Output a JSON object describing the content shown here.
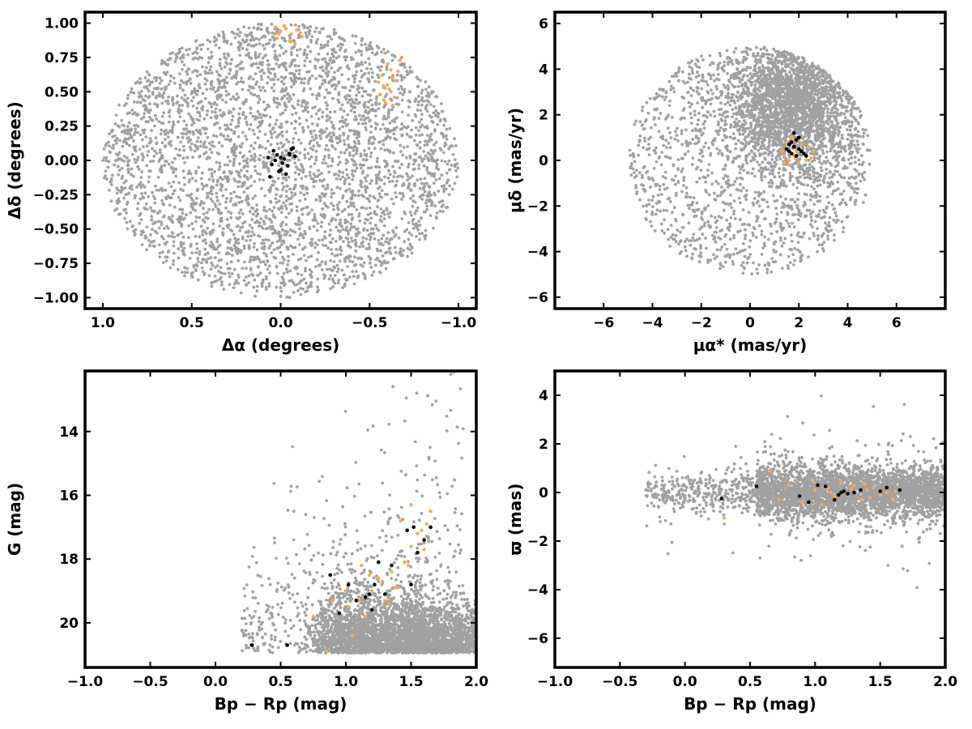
{
  "colors": {
    "field": "#a0a0a0",
    "member": "#000000",
    "candidate": "#f5a95a"
  },
  "chart_data": [
    {
      "id": "sky",
      "type": "scatter",
      "xlabel": "Δα (degrees)",
      "ylabel": "Δδ (degrees)",
      "xlim": [
        1.1,
        -1.1
      ],
      "ylim": [
        -1.08,
        1.08
      ],
      "x_reversed": true,
      "xticks": [
        1.0,
        0.5,
        0.0,
        -0.5,
        -1.0
      ],
      "xtick_labels": [
        "1.0",
        "0.5",
        "0.0",
        "−0.5",
        "−1.0"
      ],
      "yticks": [
        1.0,
        0.75,
        0.5,
        0.25,
        0.0,
        -0.25,
        -0.5,
        -0.75,
        -1.0
      ],
      "ytick_labels": [
        "1.00",
        "0.75",
        "0.50",
        "0.25",
        "0.00",
        "−0.25",
        "−0.50",
        "−0.75",
        "−1.00"
      ],
      "grid": false,
      "field": {
        "distribution": "disc",
        "center": [
          0,
          0
        ],
        "radius": 1.0,
        "n": 3600
      },
      "series": [
        {
          "role": "member",
          "x": [
            0.07,
            0.05,
            0.02,
            0.0,
            -0.02,
            -0.03,
            -0.05,
            -0.06,
            -0.08,
            -0.04,
            0.01,
            0.03,
            -0.07,
            0.06,
            0.04,
            -0.01,
            -0.05,
            0.0
          ],
          "y": [
            0.02,
            -0.03,
            0.04,
            -0.07,
            0.01,
            -0.1,
            0.05,
            0.08,
            0.03,
            -0.04,
            -0.08,
            0.0,
            0.09,
            -0.12,
            0.07,
            -0.02,
            0.04,
            0.02
          ]
        },
        {
          "role": "candidate",
          "x": [
            0.03,
            0.0,
            -0.03,
            -0.06,
            -0.09,
            -0.12,
            0.02,
            -0.05,
            -0.08,
            -0.11,
            -0.02,
            0.01,
            -0.55,
            -0.57,
            -0.6,
            -0.62,
            -0.64,
            -0.58,
            -0.61,
            -0.63,
            -0.66,
            -0.6,
            -0.56,
            -0.59,
            -0.65,
            -0.62,
            -0.67,
            -0.68,
            -0.63,
            -0.58
          ],
          "y": [
            0.97,
            0.94,
            0.96,
            0.92,
            0.95,
            0.9,
            0.89,
            0.87,
            0.85,
            0.93,
            0.98,
            0.92,
            0.57,
            0.62,
            0.55,
            0.5,
            0.46,
            0.44,
            0.52,
            0.6,
            0.65,
            0.7,
            0.48,
            0.42,
            0.58,
            0.66,
            0.73,
            0.75,
            0.4,
            0.53
          ]
        }
      ]
    },
    {
      "id": "proper-motion",
      "type": "scatter",
      "xlabel": "μα* (mas/yr)",
      "ylabel": "μδ (mas/yr)",
      "xlim": [
        -8,
        8
      ],
      "ylim": [
        -6.5,
        6.5
      ],
      "xticks": [
        -6,
        -4,
        -2,
        0,
        2,
        4,
        6
      ],
      "xtick_labels": [
        "−6",
        "−4",
        "−2",
        "0",
        "2",
        "4",
        "6"
      ],
      "yticks": [
        6,
        4,
        2,
        0,
        -2,
        -4,
        -6
      ],
      "ytick_labels": [
        "6",
        "4",
        "2",
        "0",
        "−2",
        "−4",
        "−6"
      ],
      "grid": false,
      "field": {
        "distribution": "disc-concentrated",
        "center": [
          0,
          0
        ],
        "radius": 5.0,
        "core": [
          1.8,
          2.5
        ],
        "n": 3600
      },
      "series": [
        {
          "role": "member",
          "x": [
            1.6,
            1.8,
            2.0,
            1.7,
            1.9,
            2.2,
            1.5,
            1.8,
            2.1,
            1.7,
            1.9,
            2.3,
            1.6,
            2.0
          ],
          "y": [
            0.4,
            0.6,
            0.5,
            0.3,
            0.9,
            0.3,
            0.5,
            1.2,
            0.4,
            0.8,
            0.2,
            0.2,
            0.7,
            1.0
          ]
        },
        {
          "role": "candidate",
          "x": [
            1.4,
            1.6,
            1.9,
            2.2,
            1.5,
            1.7,
            2.0,
            2.4,
            1.3,
            1.8,
            2.1,
            2.5,
            1.6,
            1.9,
            2.3,
            1.5,
            1.7,
            2.0,
            2.6,
            1.4,
            1.8
          ],
          "y": [
            0.2,
            0.0,
            0.1,
            0.3,
            0.5,
            0.8,
            -0.1,
            0.6,
            0.4,
            0.9,
            0.7,
            0.1,
            -0.2,
            0.4,
            0.0,
            0.7,
            1.0,
            0.9,
            0.4,
            -0.1,
            0.2
          ]
        }
      ]
    },
    {
      "id": "cmd",
      "type": "scatter",
      "xlabel": "Bp − Rp (mag)",
      "ylabel": "G (mag)",
      "xlim": [
        -1.0,
        2.0
      ],
      "ylim": [
        21.4,
        12.1
      ],
      "y_reversed": true,
      "xticks": [
        -1.0,
        -0.5,
        0.0,
        0.5,
        1.0,
        1.5,
        2.0
      ],
      "xtick_labels": [
        "−1.0",
        "−0.5",
        "0.0",
        "0.5",
        "1.0",
        "1.5",
        "2.0"
      ],
      "yticks": [
        20,
        18,
        16,
        14
      ],
      "ytick_labels": [
        "20",
        "18",
        "16",
        "14"
      ],
      "grid": false,
      "field": {
        "distribution": "cmd",
        "n": 3600
      },
      "series": [
        {
          "role": "member",
          "x": [
            0.28,
            0.55,
            0.95,
            1.02,
            1.08,
            1.15,
            1.2,
            1.25,
            1.22,
            1.3,
            1.35,
            1.47,
            1.5,
            1.55,
            1.6,
            1.65,
            0.88,
            1.18,
            1.52
          ],
          "y": [
            20.7,
            20.7,
            19.7,
            18.8,
            19.3,
            19.2,
            19.6,
            18.1,
            18.8,
            19.1,
            18.2,
            17.1,
            18.8,
            17.8,
            17.4,
            17.0,
            18.5,
            19.1,
            17.0
          ]
        },
        {
          "role": "candidate",
          "x": [
            0.9,
            1.0,
            1.05,
            1.1,
            1.15,
            1.2,
            1.25,
            1.3,
            1.35,
            1.4,
            1.45,
            1.5,
            1.55,
            1.6,
            1.65,
            1.12,
            1.28,
            1.38,
            1.48,
            1.02,
            0.85,
            1.42,
            1.58,
            1.33,
            1.18,
            0.75,
            1.5,
            1.62
          ],
          "y": [
            19.3,
            19.0,
            20.4,
            19.3,
            19.8,
            19.0,
            18.6,
            19.3,
            18.4,
            18.9,
            18.1,
            17.6,
            17.2,
            17.7,
            16.5,
            18.2,
            18.7,
            18.9,
            18.2,
            19.5,
            20.9,
            16.8,
            17.1,
            19.4,
            18.5,
            19.8,
            16.3,
            16.9
          ]
        }
      ]
    },
    {
      "id": "parallax",
      "type": "scatter",
      "xlabel": "Bp − Rp (mag)",
      "ylabel": "ϖ (mas)",
      "xlim": [
        -1.0,
        2.0
      ],
      "ylim": [
        -7.2,
        5.0
      ],
      "xticks": [
        -1.0,
        -0.5,
        0.0,
        0.5,
        1.0,
        1.5,
        2.0
      ],
      "xtick_labels": [
        "−1.0",
        "−0.5",
        "0.0",
        "0.5",
        "1.0",
        "1.5",
        "2.0"
      ],
      "yticks": [
        4,
        2,
        0,
        -2,
        -4,
        -6
      ],
      "ytick_labels": [
        "4",
        "2",
        "0",
        "−2",
        "−4",
        "−6"
      ],
      "grid": false,
      "field": {
        "distribution": "band",
        "n": 3600
      },
      "series": [
        {
          "role": "member",
          "x": [
            0.28,
            0.55,
            0.88,
            0.95,
            1.02,
            1.08,
            1.15,
            1.2,
            1.25,
            1.22,
            1.3,
            1.35,
            1.5,
            1.55,
            1.65,
            1.18
          ],
          "y": [
            -0.25,
            0.25,
            -0.15,
            -0.4,
            0.3,
            0.25,
            -0.3,
            0.0,
            -0.05,
            0.05,
            0.0,
            0.1,
            0.05,
            0.2,
            0.1,
            -0.1
          ]
        },
        {
          "role": "candidate",
          "x": [
            0.3,
            0.65,
            0.8,
            0.9,
            1.0,
            1.05,
            1.1,
            1.15,
            1.2,
            1.25,
            1.3,
            1.35,
            1.4,
            1.45,
            1.5,
            1.55,
            1.6,
            0.98,
            1.12,
            1.28,
            1.42,
            0.72,
            1.62,
            1.38
          ],
          "y": [
            -1.05,
            0.9,
            0.3,
            -0.4,
            0.1,
            -0.5,
            0.2,
            -0.2,
            0.4,
            -0.1,
            0.3,
            -0.3,
            0.1,
            0.2,
            -0.1,
            0.0,
            -0.3,
            0.5,
            0.0,
            0.15,
            -0.2,
            -0.3,
            0.05,
            0.35
          ]
        }
      ]
    }
  ]
}
